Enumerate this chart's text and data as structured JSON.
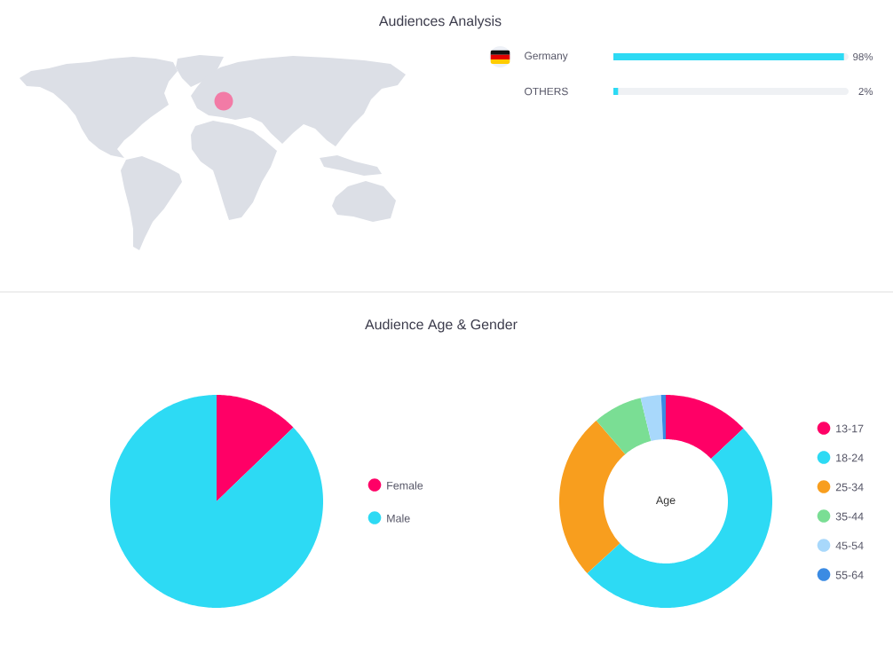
{
  "chart_data": [
    {
      "type": "bar",
      "title": "Audiences Analysis",
      "orientation": "horizontal",
      "categories": [
        "Germany",
        "OTHERS"
      ],
      "values": [
        98,
        2
      ],
      "color": "#2ddaf4",
      "xlim": [
        0,
        100
      ],
      "value_labels": [
        "98%",
        "2%"
      ],
      "tick_labels": "y"
    },
    {
      "type": "pie",
      "title": "Audience Age & Gender",
      "categories": [
        "Female",
        "Male"
      ],
      "values": [
        12.8,
        87.2
      ],
      "colors": [
        "#ff0066",
        "#2ddaf4"
      ],
      "legend": "right"
    },
    {
      "type": "donut",
      "title": "Age",
      "categories": [
        "13-17",
        "18-24",
        "25-34",
        "35-44",
        "45-54",
        "55-64"
      ],
      "values": [
        13,
        50.2,
        25.5,
        7.5,
        3.1,
        0.7
      ],
      "colors": [
        "#ff0066",
        "#2ddaf4",
        "#f89e1e",
        "#7ade94",
        "#a8d8fb",
        "#3b8be3"
      ],
      "legend": "right"
    }
  ]
}
